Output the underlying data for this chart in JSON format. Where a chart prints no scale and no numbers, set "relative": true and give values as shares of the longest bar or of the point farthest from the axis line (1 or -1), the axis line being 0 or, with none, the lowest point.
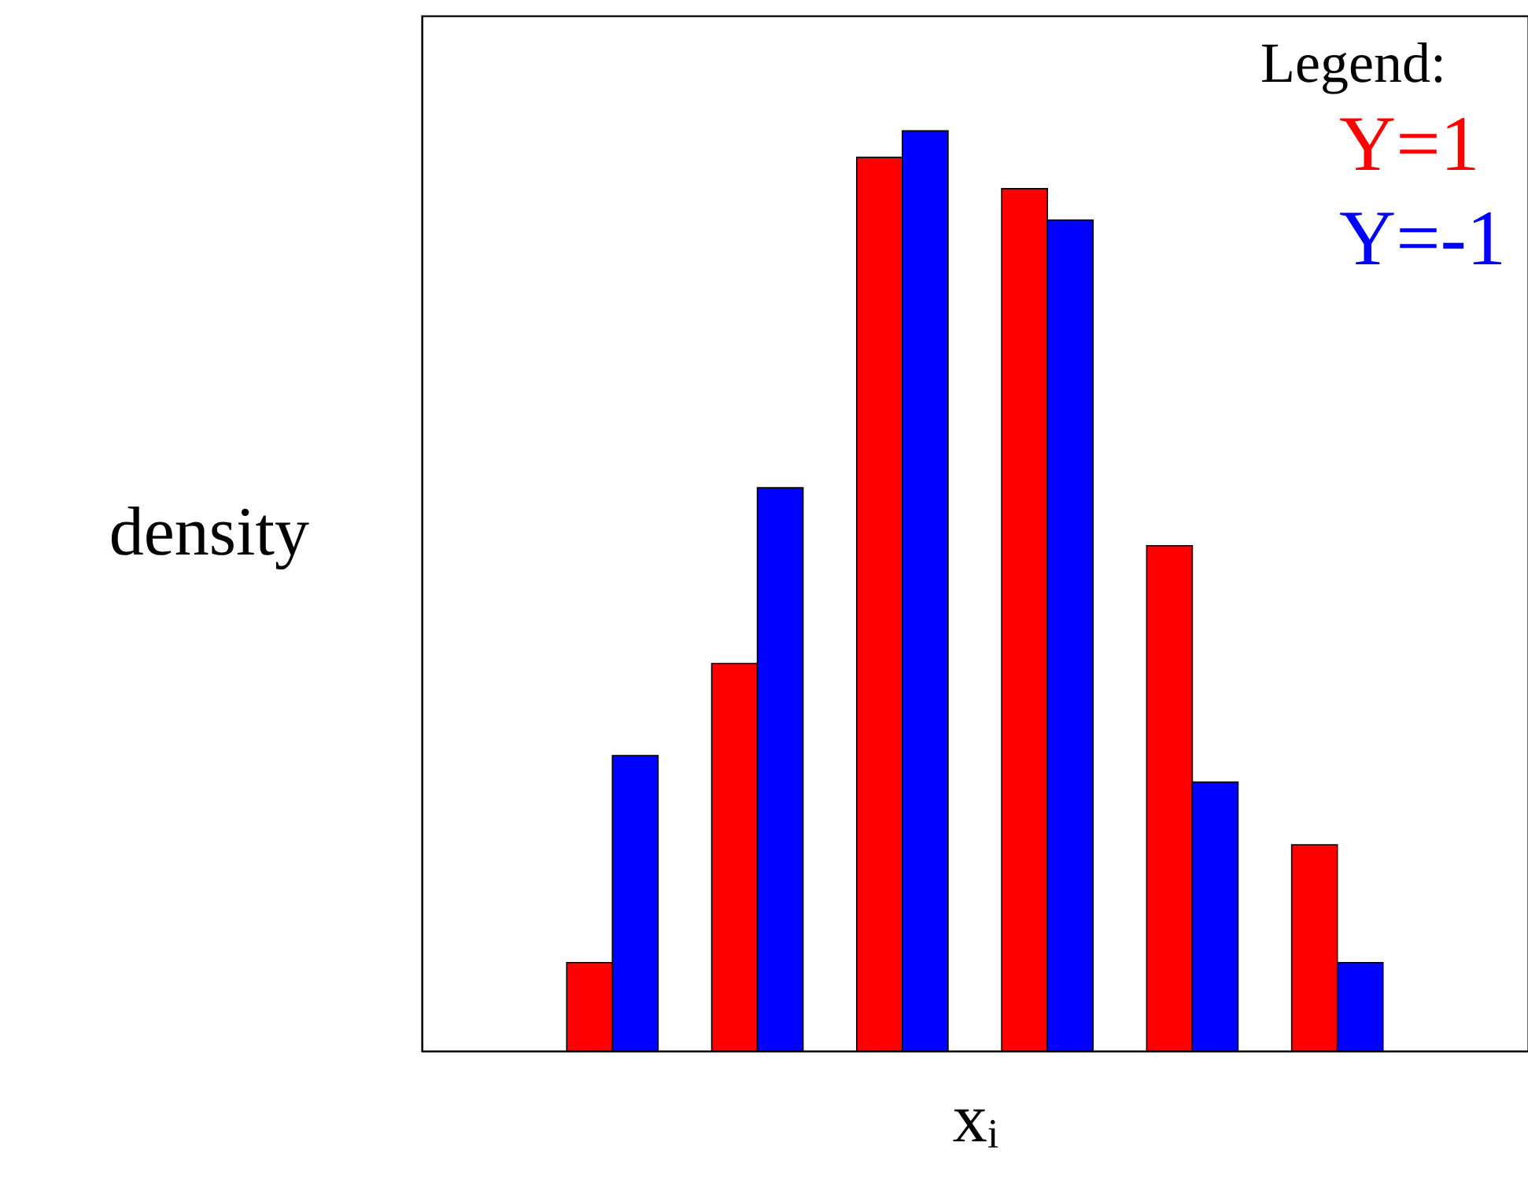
{
  "chart_data": {
    "type": "bar",
    "relative": true,
    "xlabel": "xᵢ",
    "ylabel": "density",
    "legend_title": "Legend:",
    "legend": "top right",
    "grid": false,
    "categories": [
      null,
      null,
      null,
      null,
      null,
      null
    ],
    "series": [
      {
        "name": "Y=1",
        "color": "#ff0000",
        "values": [
          0.096,
          0.421,
          0.971,
          0.937,
          0.549,
          0.224
        ]
      },
      {
        "name": "Y=-1",
        "color": "#0000ff",
        "values": [
          0.321,
          0.612,
          1,
          0.903,
          0.292,
          0.096
        ]
      }
    ]
  }
}
